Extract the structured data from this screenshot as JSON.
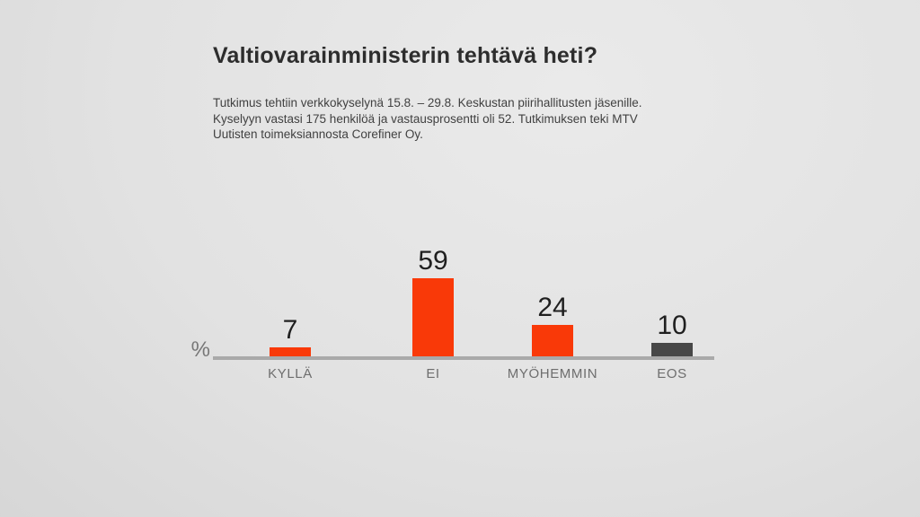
{
  "slide": {
    "title": "Valtiovarainministerin tehtävä heti?",
    "subtitle_lines": [
      "Tutkimus tehtiin verkkokyselynä 15.8. – 29.8. Keskustan piirihallitusten jäsenille.",
      "Kyselyyn vastasi 175 henkilöä ja vastausprosentti oli 52. Tutkimuksen teki MTV",
      "Uutisten toimeksiannosta Corefiner Oy."
    ]
  },
  "chart_data": {
    "type": "bar",
    "title": "Valtiovarainministerin tehtävä heti?",
    "categories": [
      "KYLLÄ",
      "EI",
      "MYÖHEMMIN",
      "EOS"
    ],
    "values": [
      7,
      59,
      24,
      10
    ],
    "bar_colors": [
      "#f93908",
      "#f93908",
      "#f93908",
      "#474747"
    ],
    "unit_label": "%",
    "xlabel": "",
    "ylabel": "%",
    "ylim": [
      0,
      65
    ],
    "value_labels_shown": true,
    "legend_position": "none",
    "grid": false
  },
  "colors": {
    "accent_orange": "#f93908",
    "bar_dark_gray": "#474747",
    "axis_line": "#a9a9a9",
    "title_text": "#2d2d2d",
    "body_text": "#414141",
    "category_label_text": "#6e6e6e"
  }
}
